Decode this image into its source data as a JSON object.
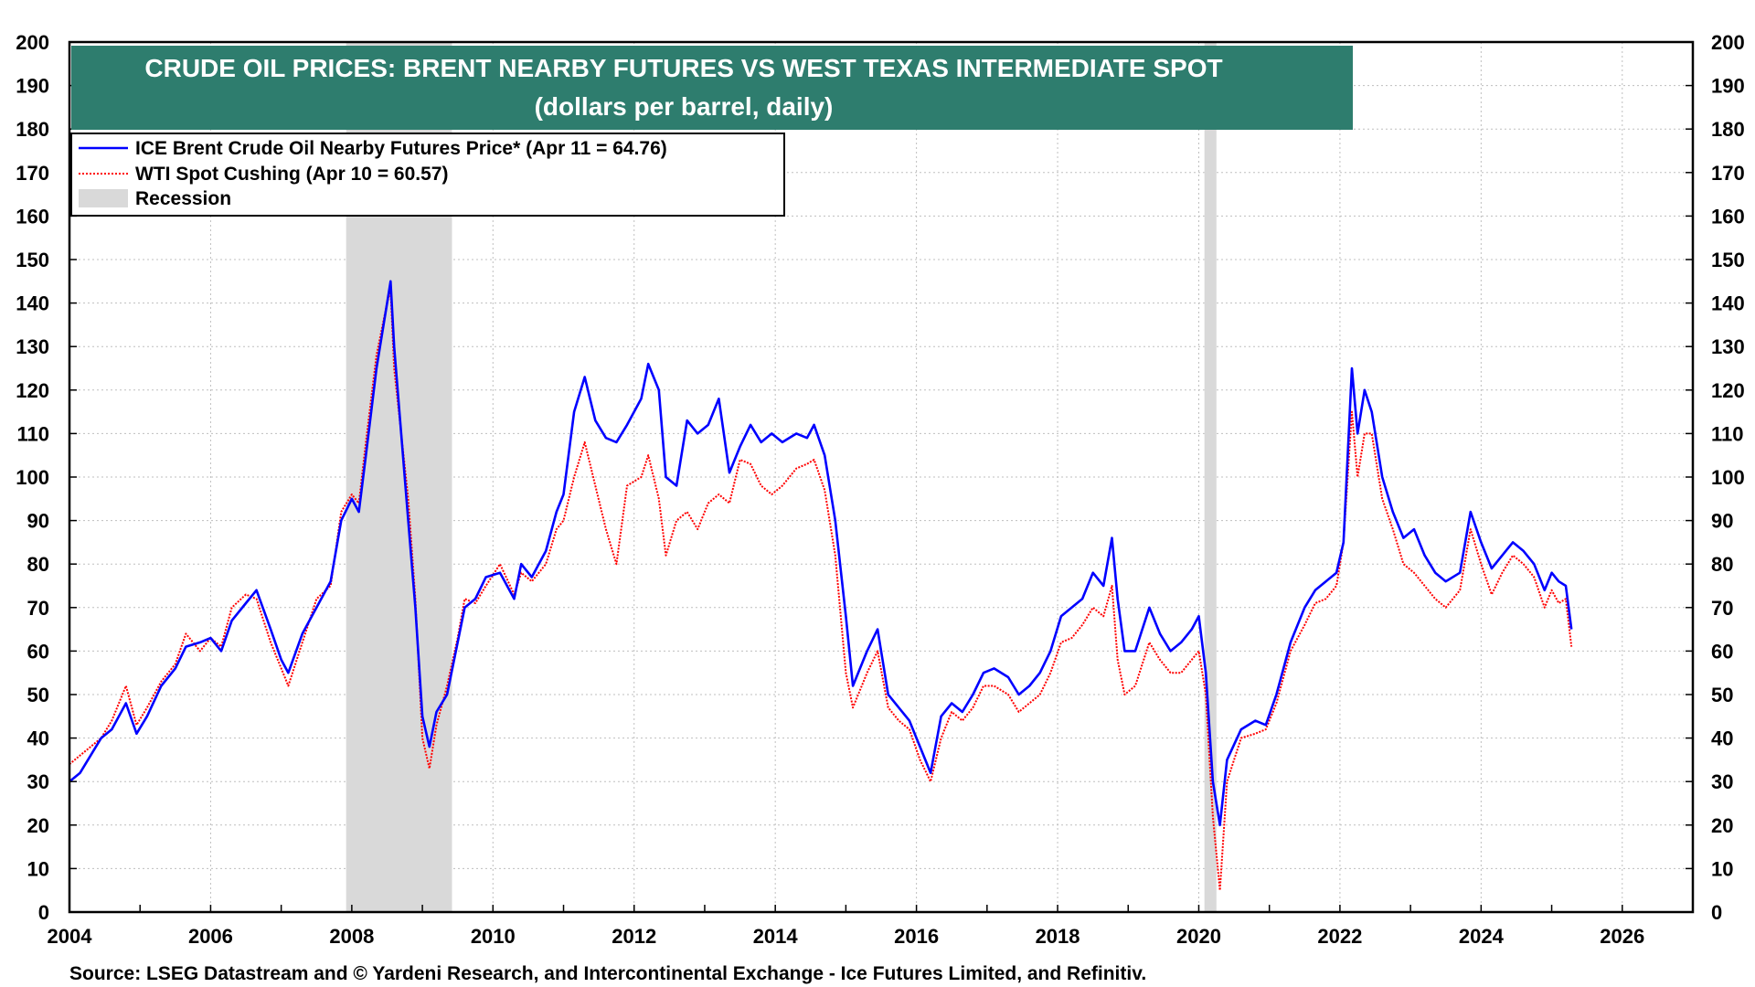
{
  "chart_data": {
    "type": "line",
    "title": "CRUDE OIL PRICES: BRENT NEARBY FUTURES VS WEST TEXAS INTERMEDIATE SPOT",
    "subtitle": "(dollars per barrel, daily)",
    "source": "Source: LSEG Datastream and © Yardeni Research, and Intercontinental Exchange - Ice Futures Limited, and Refinitiv.",
    "xlim": [
      2004,
      2027
    ],
    "ylim": [
      0,
      200
    ],
    "x_ticks": [
      2004,
      2006,
      2008,
      2010,
      2012,
      2014,
      2016,
      2018,
      2020,
      2022,
      2024,
      2026
    ],
    "y_ticks": [
      0,
      10,
      20,
      30,
      40,
      50,
      60,
      70,
      80,
      90,
      100,
      110,
      120,
      130,
      140,
      150,
      160,
      170,
      180,
      190,
      200
    ],
    "grid": true,
    "legend_placement": "top-left",
    "colors": {
      "brent": "#0000ff",
      "wti": "#ff0000",
      "recession": "#d9d9d9",
      "title_bg": "#2e7d6e"
    },
    "recessions": [
      {
        "start": 2007.92,
        "end": 2009.42
      },
      {
        "start": 2020.08,
        "end": 2020.25
      }
    ],
    "series": [
      {
        "name": "ICE Brent Crude Oil Nearby Futures Price* (Apr 11 = 64.76)",
        "style": "solid",
        "x": [
          2004.0,
          2004.15,
          2004.3,
          2004.45,
          2004.6,
          2004.8,
          2004.95,
          2005.1,
          2005.3,
          2005.5,
          2005.65,
          2005.85,
          2006.0,
          2006.15,
          2006.3,
          2006.5,
          2006.65,
          2006.85,
          2007.0,
          2007.1,
          2007.3,
          2007.5,
          2007.7,
          2007.85,
          2008.0,
          2008.1,
          2008.2,
          2008.35,
          2008.5,
          2008.55,
          2008.6,
          2008.7,
          2008.8,
          2008.9,
          2009.0,
          2009.1,
          2009.2,
          2009.35,
          2009.5,
          2009.6,
          2009.75,
          2009.9,
          2010.1,
          2010.3,
          2010.4,
          2010.55,
          2010.75,
          2010.9,
          2011.0,
          2011.15,
          2011.3,
          2011.45,
          2011.6,
          2011.75,
          2011.9,
          2012.1,
          2012.2,
          2012.35,
          2012.45,
          2012.6,
          2012.75,
          2012.9,
          2013.05,
          2013.2,
          2013.35,
          2013.5,
          2013.65,
          2013.8,
          2013.95,
          2014.1,
          2014.3,
          2014.45,
          2014.55,
          2014.7,
          2014.85,
          2015.0,
          2015.1,
          2015.3,
          2015.45,
          2015.6,
          2015.75,
          2015.9,
          2016.05,
          2016.2,
          2016.35,
          2016.5,
          2016.65,
          2016.8,
          2016.95,
          2017.1,
          2017.3,
          2017.45,
          2017.6,
          2017.75,
          2017.9,
          2018.05,
          2018.2,
          2018.35,
          2018.5,
          2018.65,
          2018.77,
          2018.85,
          2018.95,
          2019.1,
          2019.3,
          2019.45,
          2019.6,
          2019.75,
          2019.9,
          2020.0,
          2020.1,
          2020.2,
          2020.3,
          2020.4,
          2020.6,
          2020.8,
          2020.95,
          2021.1,
          2021.3,
          2021.5,
          2021.65,
          2021.8,
          2021.95,
          2022.05,
          2022.17,
          2022.25,
          2022.35,
          2022.45,
          2022.6,
          2022.75,
          2022.9,
          2023.05,
          2023.2,
          2023.35,
          2023.5,
          2023.7,
          2023.85,
          2024.0,
          2024.15,
          2024.3,
          2024.45,
          2024.6,
          2024.75,
          2024.9,
          2025.0,
          2025.1,
          2025.2,
          2025.28
        ],
        "values": [
          30,
          32,
          36,
          40,
          42,
          48,
          41,
          45,
          52,
          56,
          61,
          62,
          63,
          60,
          67,
          71,
          74,
          65,
          58,
          55,
          64,
          70,
          76,
          90,
          95,
          92,
          105,
          125,
          140,
          145,
          130,
          110,
          90,
          70,
          45,
          38,
          46,
          50,
          62,
          70,
          72,
          77,
          78,
          72,
          80,
          77,
          83,
          92,
          96,
          115,
          123,
          113,
          109,
          108,
          112,
          118,
          126,
          120,
          100,
          98,
          113,
          110,
          112,
          118,
          101,
          107,
          112,
          108,
          110,
          108,
          110,
          109,
          112,
          105,
          90,
          68,
          52,
          60,
          65,
          50,
          47,
          44,
          38,
          32,
          45,
          48,
          46,
          50,
          55,
          56,
          54,
          50,
          52,
          55,
          60,
          68,
          70,
          72,
          78,
          75,
          86,
          72,
          60,
          60,
          70,
          64,
          60,
          62,
          65,
          68,
          55,
          30,
          20,
          35,
          42,
          44,
          43,
          50,
          62,
          70,
          74,
          76,
          78,
          85,
          125,
          110,
          120,
          115,
          100,
          92,
          86,
          88,
          82,
          78,
          76,
          78,
          92,
          85,
          79,
          82,
          85,
          83,
          80,
          74,
          78,
          76,
          75,
          65
        ]
      },
      {
        "name": "WTI Spot Cushing (Apr 10 = 60.57)",
        "style": "dotted",
        "x": [
          2004.0,
          2004.15,
          2004.3,
          2004.45,
          2004.6,
          2004.8,
          2004.95,
          2005.1,
          2005.3,
          2005.5,
          2005.65,
          2005.85,
          2006.0,
          2006.15,
          2006.3,
          2006.5,
          2006.65,
          2006.85,
          2007.0,
          2007.1,
          2007.3,
          2007.5,
          2007.7,
          2007.85,
          2008.0,
          2008.1,
          2008.2,
          2008.35,
          2008.5,
          2008.55,
          2008.6,
          2008.7,
          2008.8,
          2008.9,
          2009.0,
          2009.1,
          2009.2,
          2009.35,
          2009.5,
          2009.6,
          2009.75,
          2009.9,
          2010.1,
          2010.3,
          2010.4,
          2010.55,
          2010.75,
          2010.9,
          2011.0,
          2011.15,
          2011.3,
          2011.45,
          2011.6,
          2011.75,
          2011.9,
          2012.1,
          2012.2,
          2012.35,
          2012.45,
          2012.6,
          2012.75,
          2012.9,
          2013.05,
          2013.2,
          2013.35,
          2013.5,
          2013.65,
          2013.8,
          2013.95,
          2014.1,
          2014.3,
          2014.45,
          2014.55,
          2014.7,
          2014.85,
          2015.0,
          2015.1,
          2015.3,
          2015.45,
          2015.6,
          2015.75,
          2015.9,
          2016.05,
          2016.2,
          2016.35,
          2016.5,
          2016.65,
          2016.8,
          2016.95,
          2017.1,
          2017.3,
          2017.45,
          2017.6,
          2017.75,
          2017.9,
          2018.05,
          2018.2,
          2018.35,
          2018.5,
          2018.65,
          2018.77,
          2018.85,
          2018.95,
          2019.1,
          2019.3,
          2019.45,
          2019.6,
          2019.75,
          2019.9,
          2020.0,
          2020.1,
          2020.2,
          2020.3,
          2020.4,
          2020.6,
          2020.8,
          2020.95,
          2021.1,
          2021.3,
          2021.5,
          2021.65,
          2021.8,
          2021.95,
          2022.05,
          2022.17,
          2022.25,
          2022.35,
          2022.45,
          2022.6,
          2022.75,
          2022.9,
          2023.05,
          2023.2,
          2023.35,
          2023.5,
          2023.7,
          2023.85,
          2024.0,
          2024.15,
          2024.3,
          2024.45,
          2024.6,
          2024.75,
          2024.9,
          2025.0,
          2025.1,
          2025.2,
          2025.28
        ],
        "values": [
          34,
          36,
          38,
          40,
          44,
          52,
          43,
          47,
          53,
          57,
          64,
          60,
          63,
          61,
          70,
          73,
          72,
          62,
          56,
          52,
          62,
          72,
          75,
          92,
          96,
          94,
          108,
          128,
          140,
          143,
          125,
          110,
          95,
          72,
          40,
          33,
          43,
          52,
          63,
          72,
          71,
          75,
          80,
          73,
          78,
          76,
          80,
          88,
          90,
          100,
          108,
          98,
          88,
          80,
          98,
          100,
          105,
          95,
          82,
          90,
          92,
          88,
          94,
          96,
          94,
          104,
          103,
          98,
          96,
          98,
          102,
          103,
          104,
          97,
          82,
          55,
          47,
          55,
          60,
          47,
          44,
          42,
          35,
          30,
          40,
          46,
          44,
          47,
          52,
          52,
          50,
          46,
          48,
          50,
          55,
          62,
          63,
          66,
          70,
          68,
          75,
          58,
          50,
          52,
          62,
          58,
          55,
          55,
          58,
          60,
          50,
          22,
          5,
          30,
          40,
          41,
          42,
          48,
          60,
          66,
          71,
          72,
          75,
          85,
          115,
          100,
          110,
          110,
          95,
          88,
          80,
          78,
          75,
          72,
          70,
          74,
          88,
          80,
          73,
          78,
          82,
          80,
          77,
          70,
          74,
          71,
          72,
          61
        ]
      }
    ]
  },
  "legend": {
    "brent_label": "ICE Brent Crude Oil Nearby Futures Price* (Apr 11 = 64.76)",
    "wti_label": "WTI Spot Cushing (Apr 10 = 60.57)",
    "recession_label": "Recession"
  }
}
